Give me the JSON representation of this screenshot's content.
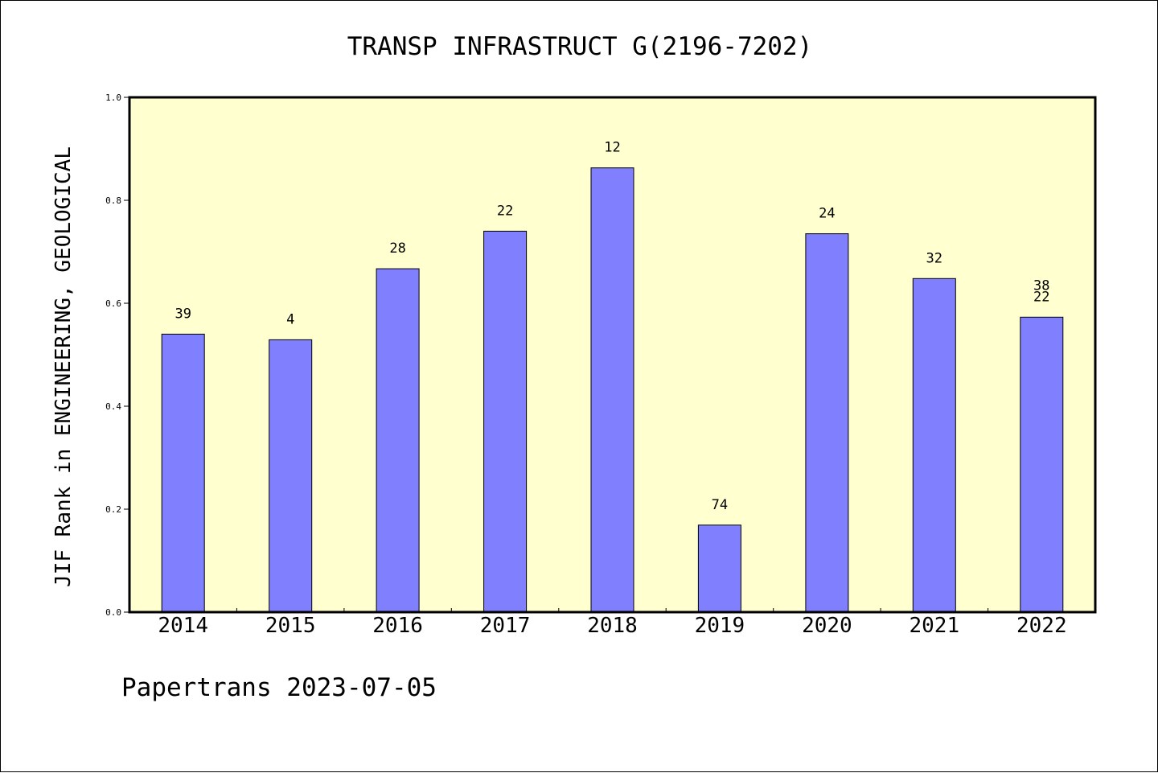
{
  "chart_data": {
    "type": "bar",
    "title": "TRANSP INFRASTRUCT G(2196-7202)",
    "xlabel": "",
    "ylabel": "JIF Rank in ENGINEERING, GEOLOGICAL",
    "categories": [
      "2014",
      "2015",
      "2016",
      "2017",
      "2018",
      "2019",
      "2020",
      "2021",
      "2022"
    ],
    "values": [
      0.54,
      0.529,
      0.667,
      0.74,
      0.863,
      0.169,
      0.735,
      0.648,
      0.573
    ],
    "ranks": [
      "39",
      "4",
      "28",
      "22",
      "12",
      "74",
      "24",
      "32",
      "38\n22"
    ],
    "ylim": [
      0.0,
      1.0
    ],
    "yticks": [
      "0.0",
      "0.2",
      "0.4",
      "0.6",
      "0.8",
      "1.0"
    ],
    "grid": false,
    "colors": {
      "bar": "#8080ff",
      "plot_background": "#ffffd0",
      "axis": "#000000"
    }
  },
  "footer": "Papertrans 2023-07-05"
}
